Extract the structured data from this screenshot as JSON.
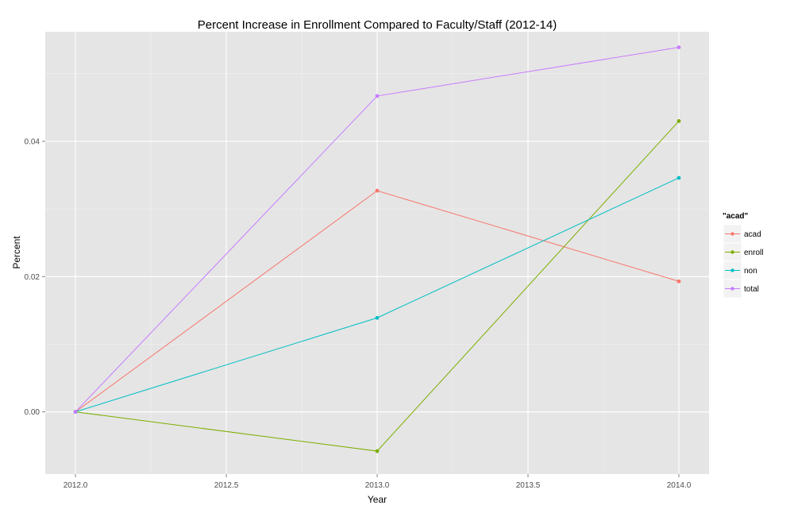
{
  "chart_data": {
    "type": "line",
    "title": "Percent Increase in Enrollment Compared to Faculty/Staff (2012-14)",
    "xlabel": "Year",
    "ylabel": "Percent",
    "x": [
      2012,
      2013,
      2014
    ],
    "xlim": [
      2011.9,
      2014.1
    ],
    "ylim": [
      -0.0092,
      0.0562
    ],
    "xticks": [
      2012.0,
      2012.5,
      2013.0,
      2013.5,
      2014.0
    ],
    "xtick_labels": [
      "2012.0",
      "2012.5",
      "2013.0",
      "2013.5",
      "2014.0"
    ],
    "yticks": [
      0.0,
      0.02,
      0.04
    ],
    "ytick_labels": [
      "0.00",
      "0.02",
      "0.04"
    ],
    "grid": true,
    "legend": {
      "title": "\"acad\"",
      "position": "right"
    },
    "series": [
      {
        "name": "acad",
        "color": "#F8766D",
        "values": [
          0.0,
          0.0327,
          0.0193
        ]
      },
      {
        "name": "enroll",
        "color": "#7CAE00",
        "values": [
          0.0,
          -0.0058,
          0.043
        ]
      },
      {
        "name": "non",
        "color": "#00BFC4",
        "values": [
          0.0,
          0.0139,
          0.0346
        ]
      },
      {
        "name": "total",
        "color": "#C77CFF",
        "values": [
          0.0,
          0.0467,
          0.0539
        ]
      }
    ]
  }
}
